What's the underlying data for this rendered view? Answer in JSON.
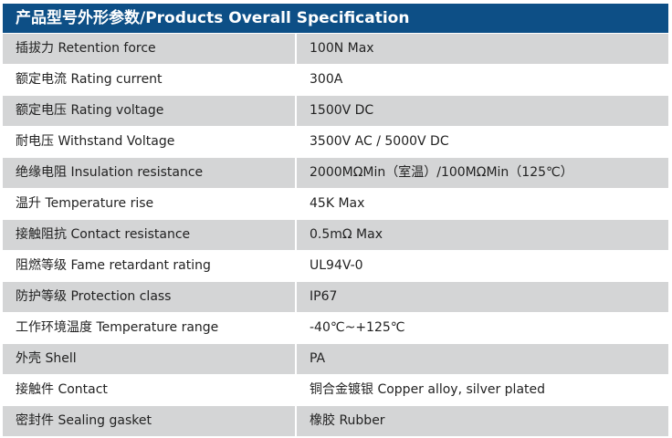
{
  "title": "产品型号外形参数/Products Overall Specification",
  "colors": {
    "header": "#0d4f86",
    "row_alt": "#d4d5d6"
  },
  "rows": [
    {
      "label": "插拔力 Retention force",
      "value": "100N Max"
    },
    {
      "label": "额定电流 Rating current",
      "value": "300A"
    },
    {
      "label": "额定电压 Rating voltage",
      "value": "1500V DC"
    },
    {
      "label": "耐电压  Withstand Voltage",
      "value": "3500V AC / 5000V DC"
    },
    {
      "label": "绝缘电阻 Insulation resistance",
      "value": "2000MΩMin（室温）/100MΩMin（125℃）"
    },
    {
      "label": "温升 Temperature rise",
      "value": "45K Max"
    },
    {
      "label": "接触阻抗 Contact resistance",
      "value": "0.5mΩ Max"
    },
    {
      "label": "阻燃等级 Fame retardant rating",
      "value": "UL94V-0"
    },
    {
      "label": "防护等级 Protection class",
      "value": "IP67"
    },
    {
      "label": "工作环境温度 Temperature range",
      "value": "-40℃~+125℃"
    },
    {
      "label": "外壳 Shell",
      "value": "PA"
    },
    {
      "label": "接触件 Contact",
      "value": "铜合金镀银 Copper alloy, silver plated"
    },
    {
      "label": "密封件 Sealing gasket",
      "value": "橡胶 Rubber"
    }
  ]
}
